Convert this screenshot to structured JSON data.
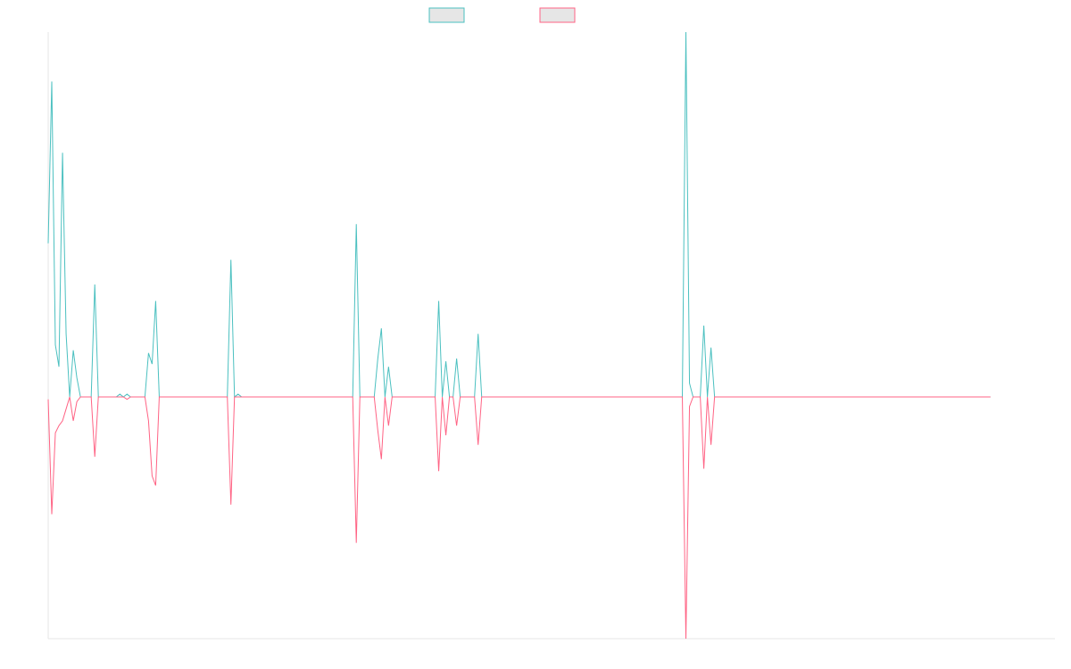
{
  "chart_data": {
    "type": "line",
    "title": "",
    "xlabel": "",
    "ylabel": "",
    "x_count": 282,
    "ylim": [
      -1.0,
      1.21
    ],
    "grid": false,
    "legend": {
      "placement": "top-center"
    },
    "series": [
      {
        "color": "#4bc0c0",
        "legend_fill": "#e6e6e6",
        "values": [
          0.56,
          1.15,
          0.19,
          0.11,
          0.89,
          0.23,
          0.0,
          0.17,
          0.07,
          0.0,
          0.0,
          0.0,
          0.0,
          0.41,
          0.0,
          0.0,
          0.0,
          0.0,
          0.0,
          0.0,
          0.01,
          0.0,
          0.01,
          0.0,
          0.0,
          0.0,
          0.0,
          0.0,
          0.16,
          0.12,
          0.35,
          0.0,
          0.0,
          0.0,
          0.0,
          0.0,
          0.0,
          0.0,
          0.0,
          0.0,
          0.0,
          0.0,
          0.0,
          0.0,
          0.0,
          0.0,
          0.0,
          0.0,
          0.0,
          0.0,
          0.0,
          0.5,
          0.0,
          0.01,
          0.0,
          0.0,
          0.0,
          0.0,
          0.0,
          0.0,
          0.0,
          0.0,
          0.0,
          0.0,
          0.0,
          0.0,
          0.0,
          0.0,
          0.0,
          0.0,
          0.0,
          0.0,
          0.0,
          0.0,
          0.0,
          0.0,
          0.0,
          0.0,
          0.0,
          0.0,
          0.0,
          0.0,
          0.0,
          0.0,
          0.0,
          0.0,
          0.63,
          0.0,
          0.0,
          0.0,
          0.0,
          0.0,
          0.14,
          0.25,
          0.0,
          0.11,
          0.0,
          0.0,
          0.0,
          0.0,
          0.0,
          0.0,
          0.0,
          0.0,
          0.0,
          0.0,
          0.0,
          0.0,
          0.0,
          0.35,
          0.0,
          0.13,
          0.0,
          0.0,
          0.14,
          0.0,
          0.0,
          0.0,
          0.0,
          0.0,
          0.23,
          0.0,
          0.0,
          0.0,
          0.0,
          0.0,
          0.0,
          0.0,
          0.0,
          0.0,
          0.0,
          0.0,
          0.0,
          0.0,
          0.0,
          0.0,
          0.0,
          0.0,
          0.0,
          0.0,
          0.0,
          0.0,
          0.0,
          0.0,
          0.0,
          0.0,
          0.0,
          0.0,
          0.0,
          0.0,
          0.0,
          0.0,
          0.0,
          0.0,
          0.0,
          0.0,
          0.0,
          0.0,
          0.0,
          0.0,
          0.0,
          0.0,
          0.0,
          0.0,
          0.0,
          0.0,
          0.0,
          0.0,
          0.0,
          0.0,
          0.0,
          0.0,
          0.0,
          0.0,
          0.0,
          0.0,
          0.0,
          0.0,
          1.33,
          0.05,
          0.0,
          0.0,
          0.0,
          0.26,
          0.0,
          0.18,
          0.0,
          0.0,
          0.0,
          0.0,
          0.0,
          0.0,
          0.0,
          0.0,
          0.0,
          0.0,
          0.0,
          0.0,
          0.0,
          0.0,
          0.0,
          0.0,
          0.0,
          0.0,
          0.0,
          0.0,
          0.0,
          0.0,
          0.0,
          0.0,
          0.0,
          0.0,
          0.0,
          0.0,
          0.0,
          0.0,
          0.0,
          0.0,
          0.0,
          0.0,
          0.0,
          0.0,
          0.0,
          0.0,
          0.0,
          0.0,
          0.0,
          0.0,
          0.0,
          0.0,
          0.0,
          0.0,
          0.0,
          0.0,
          0.0,
          0.0,
          0.0,
          0.0,
          0.0,
          0.0,
          0.0,
          0.0,
          0.0,
          0.0,
          0.0,
          0.0,
          0.0,
          0.0,
          0.0,
          0.0,
          0.0,
          0.0,
          0.0,
          0.0,
          0.0,
          0.0,
          0.0,
          0.0,
          0.0,
          0.0,
          0.0,
          0.0,
          0.0,
          0.0
        ]
      },
      {
        "color": "#ff6384",
        "legend_fill": "#e6e6e6",
        "values": [
          -0.01,
          -0.49,
          -0.15,
          -0.12,
          -0.1,
          -0.05,
          0.0,
          -0.1,
          -0.02,
          0.0,
          0.0,
          0.0,
          0.0,
          -0.25,
          0.0,
          0.0,
          0.0,
          0.0,
          0.0,
          0.0,
          0.0,
          0.0,
          -0.01,
          0.0,
          0.0,
          0.0,
          0.0,
          0.0,
          -0.1,
          -0.33,
          -0.37,
          0.0,
          0.0,
          0.0,
          0.0,
          0.0,
          0.0,
          0.0,
          0.0,
          0.0,
          0.0,
          0.0,
          0.0,
          0.0,
          0.0,
          0.0,
          0.0,
          0.0,
          0.0,
          0.0,
          0.0,
          -0.45,
          0.0,
          0.0,
          0.0,
          0.0,
          0.0,
          0.0,
          0.0,
          0.0,
          0.0,
          0.0,
          0.0,
          0.0,
          0.0,
          0.0,
          0.0,
          0.0,
          0.0,
          0.0,
          0.0,
          0.0,
          0.0,
          0.0,
          0.0,
          0.0,
          0.0,
          0.0,
          0.0,
          0.0,
          0.0,
          0.0,
          0.0,
          0.0,
          0.0,
          0.0,
          -0.61,
          0.0,
          0.0,
          0.0,
          0.0,
          0.0,
          -0.14,
          -0.26,
          0.0,
          -0.12,
          0.0,
          0.0,
          0.0,
          0.0,
          0.0,
          0.0,
          0.0,
          0.0,
          0.0,
          0.0,
          0.0,
          0.0,
          0.0,
          -0.31,
          0.0,
          -0.16,
          0.0,
          0.0,
          -0.12,
          0.0,
          0.0,
          0.0,
          0.0,
          0.0,
          -0.2,
          0.0,
          0.0,
          0.0,
          0.0,
          0.0,
          0.0,
          0.0,
          0.0,
          0.0,
          0.0,
          0.0,
          0.0,
          0.0,
          0.0,
          0.0,
          0.0,
          0.0,
          0.0,
          0.0,
          0.0,
          0.0,
          0.0,
          0.0,
          0.0,
          0.0,
          0.0,
          0.0,
          0.0,
          0.0,
          0.0,
          0.0,
          0.0,
          0.0,
          0.0,
          0.0,
          0.0,
          0.0,
          0.0,
          0.0,
          0.0,
          0.0,
          0.0,
          0.0,
          0.0,
          0.0,
          0.0,
          0.0,
          0.0,
          0.0,
          0.0,
          0.0,
          0.0,
          0.0,
          0.0,
          0.0,
          0.0,
          0.0,
          -1.01,
          -0.04,
          0.0,
          0.0,
          0.0,
          -0.3,
          0.0,
          -0.2,
          0.0,
          0.0,
          0.0,
          0.0,
          0.0,
          0.0,
          0.0,
          0.0,
          0.0,
          0.0,
          0.0,
          0.0,
          0.0,
          0.0,
          0.0,
          0.0,
          0.0,
          0.0,
          0.0,
          0.0,
          0.0,
          0.0,
          0.0,
          0.0,
          0.0,
          0.0,
          0.0,
          0.0,
          0.0,
          0.0,
          0.0,
          0.0,
          0.0,
          0.0,
          0.0,
          0.0,
          0.0,
          0.0,
          0.0,
          0.0,
          0.0,
          0.0,
          0.0,
          0.0,
          0.0,
          0.0,
          0.0,
          0.0,
          0.0,
          0.0,
          0.0,
          0.0,
          0.0,
          0.0,
          0.0,
          0.0,
          0.0,
          0.0,
          0.0,
          0.0,
          0.0,
          0.0,
          0.0,
          0.0,
          0.0,
          0.0,
          0.0,
          0.0,
          0.0,
          0.0,
          0.0,
          0.0,
          0.0,
          0.0,
          0.0,
          0.0,
          0.0,
          0.0
        ]
      }
    ],
    "axis_color": "#e5e5e5"
  }
}
